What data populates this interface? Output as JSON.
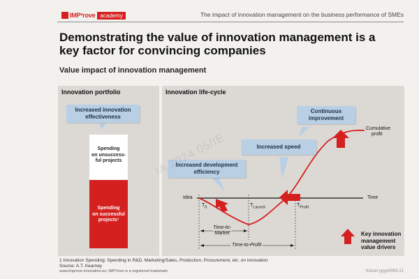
{
  "header": {
    "logo_text": "IMP³rove",
    "logo_badge": "academy",
    "title": "The impact of innovation management on the business performance of SMEs"
  },
  "slide": {
    "title": "Demonstrating the value of innovation management is a key factor for convincing companies",
    "subtitle": "Value impact of innovation management"
  },
  "portfolio": {
    "title": "Innovation portfolio",
    "callout_line1": "Increased innovation",
    "callout_line2": "effectiveness",
    "unsuccessful_line1": "Spending",
    "unsuccessful_line2": "on unsuccess-",
    "unsuccessful_line3": "ful projects",
    "successful_line1": "Spending",
    "successful_line2": "on successful",
    "successful_line3": "projects¹"
  },
  "lifecycle": {
    "title": "Innovation life-cycle",
    "callout_dev_line1": "Increased development",
    "callout_dev_line2": "efficiency",
    "callout_speed": "Increased speed",
    "callout_cont_line1": "Continuous",
    "callout_cont_line2": "improvement",
    "label_idea": "Idea",
    "label_time": "Time",
    "label_t0_main": "T",
    "label_t0_sub": "0",
    "label_tlaunch_main": "T",
    "label_tlaunch_sub": "Launch",
    "label_tprofit_main": "T",
    "label_tprofit_sub": "Profit",
    "label_cumprofit_line1": "Cumulative",
    "label_cumprofit_line2": "profit",
    "label_ttm_line1": "Time-to-",
    "label_ttm_line2": "Market",
    "label_ttp": "Time-to-Profit"
  },
  "legend": {
    "line1": "Key innovation",
    "line2": "management",
    "line3": "value drivers"
  },
  "footnote": {
    "line1": "1   Innovation Spending: Spending in R&D, Marketing/Sales, Production, Procurement, etc. on innovation",
    "line2": "Source: A.T. Kearney"
  },
  "footer": {
    "url": "www.improve-innovation.eu; IMP³rove is a registered trademark",
    "right": "Kürzel yyyy/0000   21"
  },
  "watermark": "IA  2024 05/IE",
  "colors": {
    "accent_red": "#d4201f",
    "callout_blue": "#b9cfe4",
    "panel_grey": "#dcd9d5"
  }
}
